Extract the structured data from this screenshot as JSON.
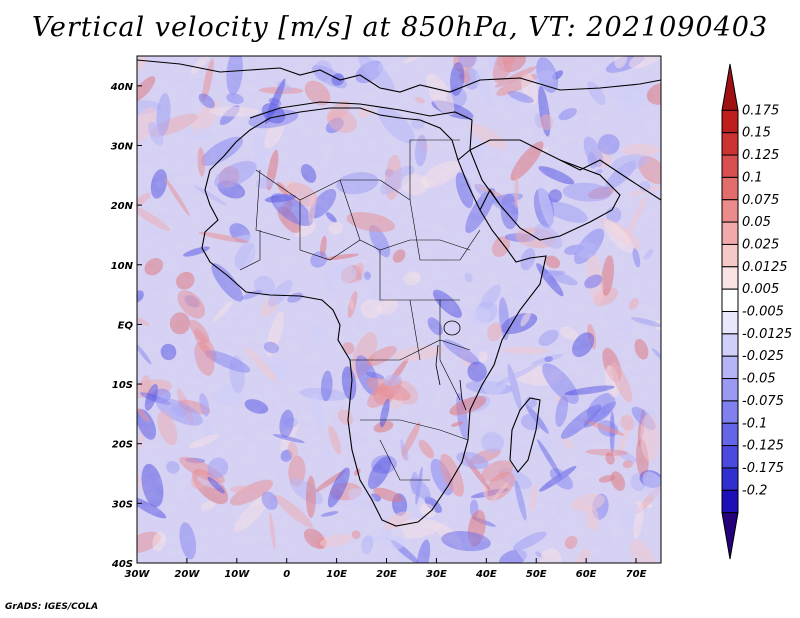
{
  "title": "Vertical velocity [m/s] at 850hPa, VT: 2021090403",
  "footer": "GrADS: IGES/COLA",
  "map": {
    "lon_range": [
      -30,
      75
    ],
    "lat_range": [
      -40,
      45
    ],
    "lon_ticks": [
      {
        "value": -30,
        "label": "30W"
      },
      {
        "value": -20,
        "label": "20W"
      },
      {
        "value": -10,
        "label": "10W"
      },
      {
        "value": 0,
        "label": "0"
      },
      {
        "value": 10,
        "label": "10E"
      },
      {
        "value": 20,
        "label": "20E"
      },
      {
        "value": 30,
        "label": "30E"
      },
      {
        "value": 40,
        "label": "40E"
      },
      {
        "value": 50,
        "label": "50E"
      },
      {
        "value": 60,
        "label": "60E"
      },
      {
        "value": 70,
        "label": "70E"
      }
    ],
    "lat_ticks": [
      {
        "value": 40,
        "label": "40N"
      },
      {
        "value": 30,
        "label": "30N"
      },
      {
        "value": 20,
        "label": "20N"
      },
      {
        "value": 10,
        "label": "10N"
      },
      {
        "value": 0,
        "label": "EQ"
      },
      {
        "value": -10,
        "label": "10S"
      },
      {
        "value": -20,
        "label": "20S"
      },
      {
        "value": -30,
        "label": "30S"
      },
      {
        "value": -40,
        "label": "40S"
      }
    ]
  },
  "colorbar": {
    "colors": [
      "#24007a",
      "#1e10b8",
      "#3030d0",
      "#4a4ae0",
      "#6565e8",
      "#8080ee",
      "#9a9af2",
      "#b4b4f6",
      "#cfcff9",
      "#e8e8fc",
      "#ffffff",
      "#fbe3e3",
      "#f7c8c8",
      "#f1a9a9",
      "#eb8b8b",
      "#e26d6d",
      "#d84f4f",
      "#cc3333",
      "#be1e1e",
      "#a01010"
    ],
    "labels": [
      "-0.2",
      "-0.175",
      "-0.125",
      "-0.1",
      "-0.075",
      "-0.05",
      "-0.025",
      "-0.0125",
      "-0.005",
      "0.005",
      "0.0125",
      "0.025",
      "0.05",
      "0.075",
      "0.1",
      "0.125",
      "0.15",
      "0.175"
    ]
  }
}
